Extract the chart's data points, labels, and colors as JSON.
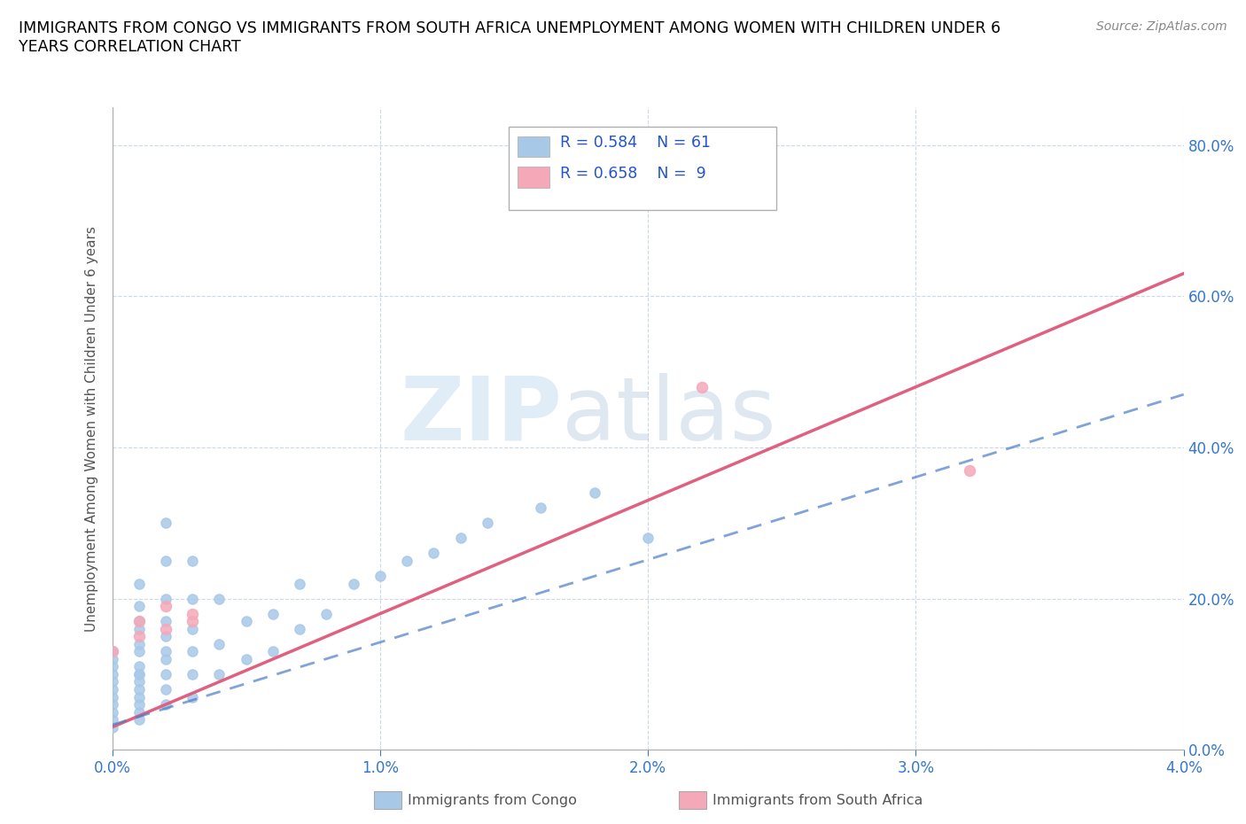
{
  "title": "IMMIGRANTS FROM CONGO VS IMMIGRANTS FROM SOUTH AFRICA UNEMPLOYMENT AMONG WOMEN WITH CHILDREN UNDER 6\nYEARS CORRELATION CHART",
  "source": "Source: ZipAtlas.com",
  "ylabel": "Unemployment Among Women with Children Under 6 years",
  "xlim": [
    0.0,
    0.04
  ],
  "ylim": [
    0.0,
    0.85
  ],
  "x_ticks": [
    0.0,
    0.01,
    0.02,
    0.03,
    0.04
  ],
  "x_tick_labels": [
    "0.0%",
    "1.0%",
    "2.0%",
    "3.0%",
    "4.0%"
  ],
  "y_ticks": [
    0.0,
    0.2,
    0.4,
    0.6,
    0.8
  ],
  "y_tick_labels": [
    "0.0%",
    "20.0%",
    "40.0%",
    "60.0%",
    "80.0%"
  ],
  "congo_color": "#a8c8e8",
  "sa_color": "#f4a8b8",
  "congo_line_color": "#4a7cc9",
  "sa_line_color": "#e06080",
  "R_congo": 0.584,
  "N_congo": 61,
  "R_sa": 0.658,
  "N_sa": 9,
  "watermark_zip": "ZIP",
  "watermark_atlas": "atlas",
  "legend_label_congo": "Immigrants from Congo",
  "legend_label_sa": "Immigrants from South Africa",
  "congo_x": [
    0.0,
    0.0,
    0.0,
    0.0,
    0.0,
    0.0,
    0.0,
    0.0,
    0.0,
    0.0,
    0.0,
    0.001,
    0.001,
    0.001,
    0.001,
    0.001,
    0.001,
    0.001,
    0.001,
    0.001,
    0.001,
    0.001,
    0.001,
    0.001,
    0.001,
    0.001,
    0.002,
    0.002,
    0.002,
    0.002,
    0.002,
    0.002,
    0.002,
    0.002,
    0.002,
    0.002,
    0.003,
    0.003,
    0.003,
    0.003,
    0.003,
    0.003,
    0.004,
    0.004,
    0.004,
    0.005,
    0.005,
    0.006,
    0.006,
    0.007,
    0.007,
    0.008,
    0.009,
    0.01,
    0.011,
    0.012,
    0.013,
    0.014,
    0.016,
    0.018,
    0.02
  ],
  "congo_y": [
    0.03,
    0.04,
    0.05,
    0.06,
    0.07,
    0.08,
    0.09,
    0.1,
    0.11,
    0.12,
    0.13,
    0.04,
    0.05,
    0.06,
    0.07,
    0.08,
    0.09,
    0.1,
    0.11,
    0.13,
    0.14,
    0.16,
    0.17,
    0.19,
    0.22,
    0.1,
    0.06,
    0.08,
    0.1,
    0.12,
    0.13,
    0.15,
    0.17,
    0.2,
    0.25,
    0.3,
    0.07,
    0.1,
    0.13,
    0.16,
    0.2,
    0.25,
    0.1,
    0.14,
    0.2,
    0.12,
    0.17,
    0.13,
    0.18,
    0.16,
    0.22,
    0.18,
    0.22,
    0.23,
    0.25,
    0.26,
    0.28,
    0.3,
    0.32,
    0.34,
    0.28
  ],
  "sa_x": [
    0.0,
    0.001,
    0.001,
    0.002,
    0.002,
    0.003,
    0.003,
    0.022,
    0.032
  ],
  "sa_y": [
    0.13,
    0.15,
    0.17,
    0.16,
    0.19,
    0.17,
    0.18,
    0.48,
    0.37
  ],
  "congo_line_x": [
    0.0,
    0.04
  ],
  "congo_line_y": [
    0.033,
    0.47
  ],
  "sa_line_x": [
    0.0,
    0.04
  ],
  "sa_line_y": [
    0.03,
    0.63
  ]
}
